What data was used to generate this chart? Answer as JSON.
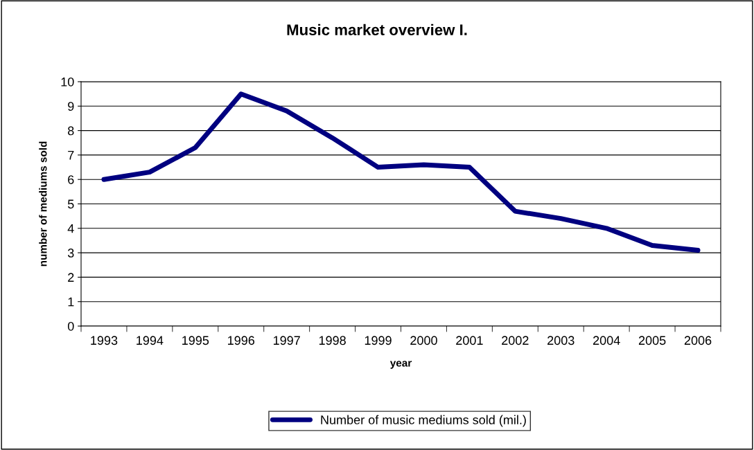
{
  "chart_data": {
    "type": "line",
    "title": "Music market overview I.",
    "xlabel": "year",
    "ylabel": "number of mediums sold",
    "categories": [
      "1993",
      "1994",
      "1995",
      "1996",
      "1997",
      "1998",
      "1999",
      "2000",
      "2001",
      "2002",
      "2003",
      "2004",
      "2005",
      "2006"
    ],
    "series": [
      {
        "name": "Number of music mediums sold (mil.)",
        "color": "#000080",
        "values": [
          6.0,
          6.3,
          7.3,
          9.5,
          8.8,
          7.7,
          6.5,
          6.6,
          6.5,
          4.7,
          4.4,
          4.0,
          3.3,
          3.1
        ]
      }
    ],
    "ylim": [
      0,
      10
    ],
    "yticks": [
      0,
      1,
      2,
      3,
      4,
      5,
      6,
      7,
      8,
      9,
      10
    ],
    "grid": "y",
    "legend": "bottom",
    "marker": "none",
    "line_style": "solid"
  }
}
